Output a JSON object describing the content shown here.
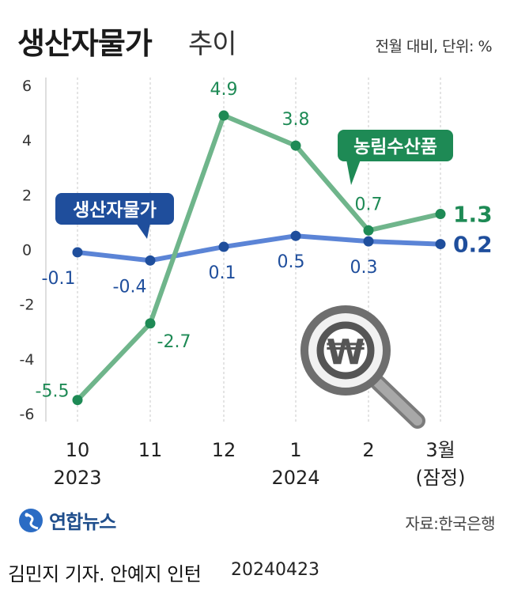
{
  "header": {
    "title": "생산자물가",
    "subtitle": "추이",
    "unit_note": "전월 대비, 단위: %"
  },
  "chart_data": {
    "type": "line",
    "categories": [
      "10\n2023",
      "11",
      "12",
      "1\n2024",
      "2",
      "3월\n(잠정)"
    ],
    "x_labels_top": [
      "10",
      "11",
      "12",
      "1",
      "2",
      "3월"
    ],
    "x_labels_bottom": [
      "2023",
      "",
      "",
      "2024",
      "",
      "(잠정)"
    ],
    "y_ticks": [
      "6",
      "4",
      "2",
      "0",
      "-2",
      "-4",
      "-6"
    ],
    "ylim": [
      -6,
      6
    ],
    "grid": "vertical-dashed",
    "series": [
      {
        "name": "생산자물가",
        "values": [
          -0.1,
          -0.4,
          0.1,
          0.5,
          0.3,
          0.2
        ],
        "labels": [
          "-0.1",
          "-0.4",
          "0.1",
          "0.5",
          "0.3",
          "0.2"
        ],
        "color": "#5b84d6",
        "marker_color": "#1f4e9c",
        "label_color": "#1f4e9c"
      },
      {
        "name": "농림수산품",
        "values": [
          -5.5,
          -2.7,
          4.9,
          3.8,
          0.7,
          1.3
        ],
        "labels": [
          "-5.5",
          "-2.7",
          "4.9",
          "3.8",
          "0.7",
          "1.3"
        ],
        "color": "#6fb58b",
        "marker_color": "#1e8a55",
        "label_color": "#1e8a55"
      }
    ],
    "legend": "callouts"
  },
  "decor": {
    "magnifier_icon": "magnifier-won-icon",
    "won_symbol": "₩"
  },
  "branding": {
    "logo_icon": "yonhap-globe-icon",
    "logo_text": "연합뉴스",
    "source": "자료:한국은행"
  },
  "footer": {
    "credit": "김민지 기자. 안예지 인턴",
    "date": "20240423"
  }
}
